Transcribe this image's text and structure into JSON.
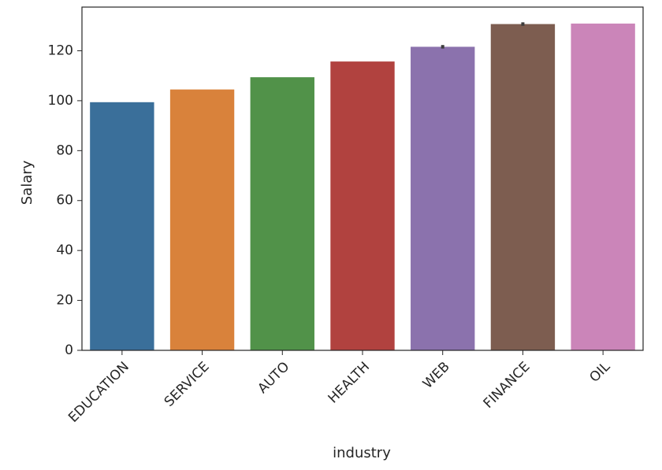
{
  "chart_data": {
    "type": "bar",
    "xlabel": "industry",
    "ylabel": "Salary",
    "categories": [
      "EDUCATION",
      "SERVICE",
      "AUTO",
      "HEALTH",
      "WEB",
      "FINANCE",
      "OIL"
    ],
    "values": [
      99.4,
      104.5,
      109.4,
      115.7,
      121.6,
      130.7,
      130.9
    ],
    "error": [
      0.0,
      0.0,
      0.0,
      0.0,
      0.7,
      0.7,
      0.0
    ],
    "colors": [
      "#3a6f9a",
      "#d9823b",
      "#519249",
      "#b1423f",
      "#8b72ad",
      "#7d5d50",
      "#cb85b9"
    ],
    "ylim": [
      0,
      137.5
    ],
    "yticks": [
      0,
      20,
      40,
      60,
      80,
      100,
      120
    ],
    "grid": false,
    "legend": "none"
  }
}
